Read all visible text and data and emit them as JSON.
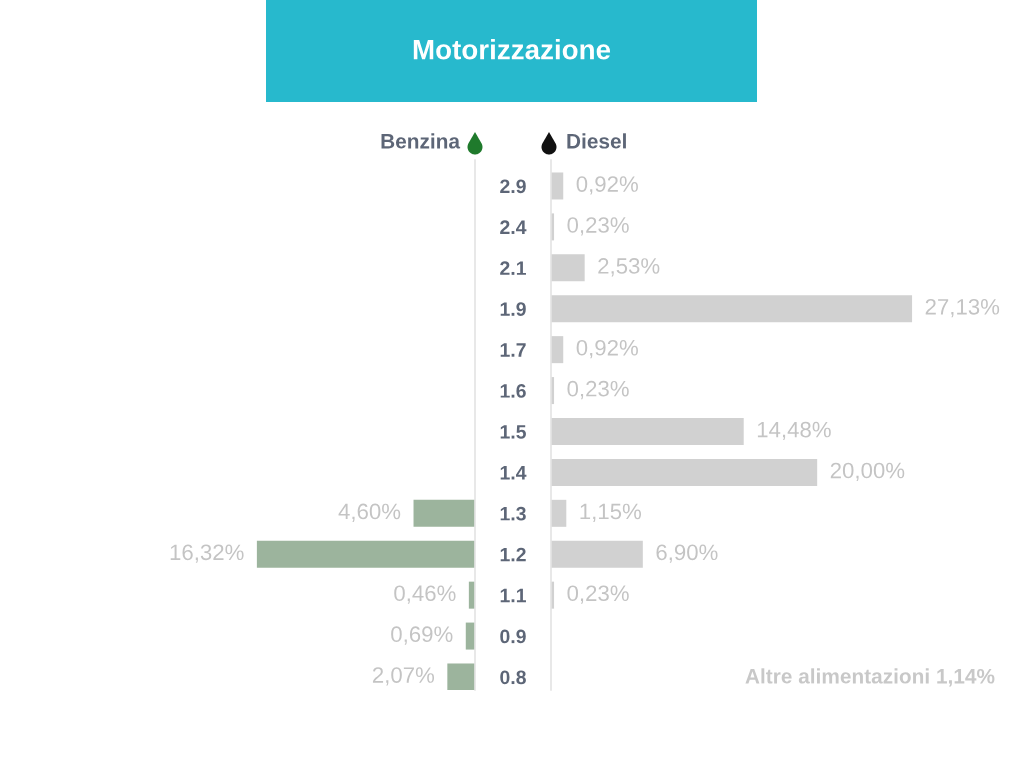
{
  "chart_data": [
    {
      "type": "bar",
      "orientation": "horizontal",
      "title": "Motorizzazione",
      "xlabel": "Benzina",
      "categories": [
        "2.9",
        "2.4",
        "2.1",
        "1.9",
        "1.7",
        "1.6",
        "1.5",
        "1.4",
        "1.3",
        "1.2",
        "1.1",
        "0.9",
        "0.8"
      ],
      "values": [
        null,
        null,
        null,
        null,
        null,
        null,
        null,
        null,
        4.6,
        16.32,
        0.46,
        0.69,
        2.07
      ],
      "value_labels": [
        null,
        null,
        null,
        null,
        null,
        null,
        null,
        null,
        "4,60%",
        "16,32%",
        "0,46%",
        "0,69%",
        "2,07%"
      ],
      "color": "#9cb49d"
    },
    {
      "type": "bar",
      "orientation": "horizontal",
      "xlabel": "Diesel",
      "categories": [
        "2.9",
        "2.4",
        "2.1",
        "1.9",
        "1.7",
        "1.6",
        "1.5",
        "1.4",
        "1.3",
        "1.2",
        "1.1",
        "0.9",
        "0.8"
      ],
      "values": [
        0.92,
        0.23,
        2.53,
        27.13,
        0.92,
        0.23,
        14.48,
        20.0,
        1.15,
        6.9,
        0.23,
        null,
        null
      ],
      "value_labels": [
        "0,92%",
        "0,23%",
        "2,53%",
        "27,13%",
        "0,92%",
        "0,23%",
        "14,48%",
        "20,00%",
        "1,15%",
        "6,90%",
        "0,23%",
        null,
        null
      ],
      "color": "#d1d1d1",
      "tick_labels": false,
      "annotations": [
        "Altre alimentazioni 1,14%"
      ]
    }
  ]
}
